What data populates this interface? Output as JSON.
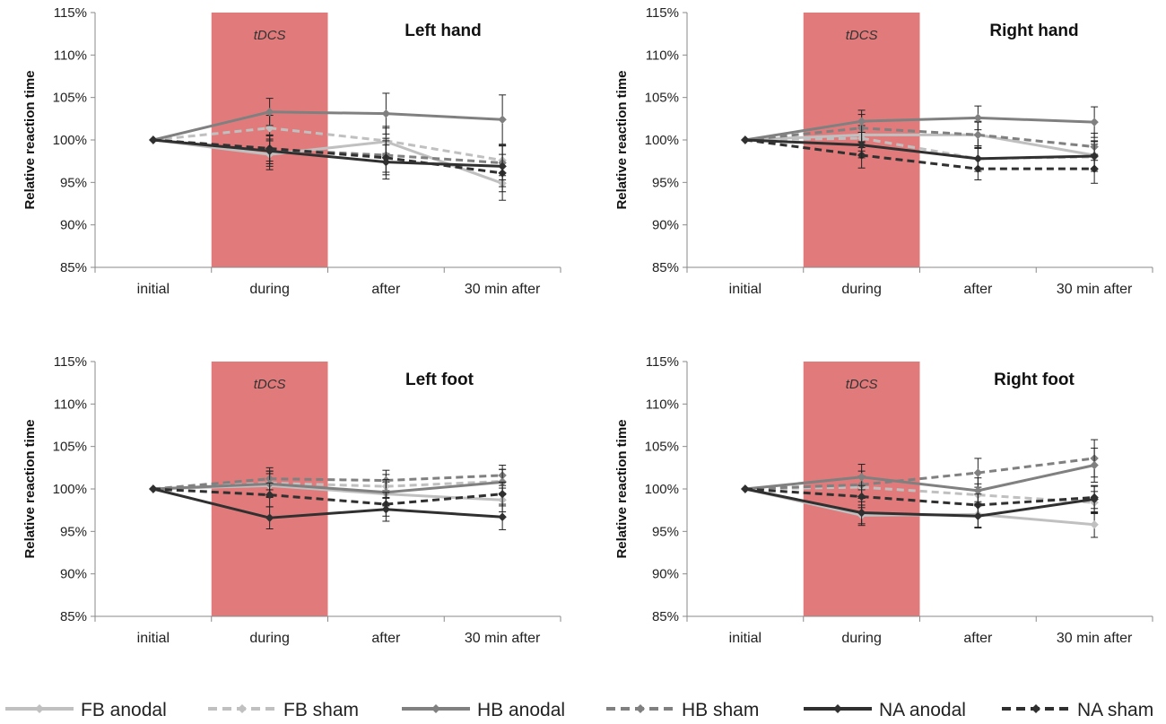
{
  "figure": {
    "legend": [
      {
        "name": "FB anodal",
        "color": "#c0c0c0",
        "dashed": false
      },
      {
        "name": "FB sham",
        "color": "#c0c0c0",
        "dashed": true
      },
      {
        "name": "HB anodal",
        "color": "#808080",
        "dashed": false
      },
      {
        "name": "HB sham",
        "color": "#808080",
        "dashed": true
      },
      {
        "name": "NA anodal",
        "color": "#303030",
        "dashed": false
      },
      {
        "name": "NA sham",
        "color": "#303030",
        "dashed": true
      }
    ],
    "stimulation_color": "#dc6464"
  },
  "chart_data": [
    {
      "type": "line",
      "title": "Left hand",
      "ylabel": "Relative reaction time",
      "xlabel": "",
      "categories": [
        "initial",
        "during",
        "after",
        "30 min after"
      ],
      "ylim": [
        85,
        115
      ],
      "yticks": [
        "85%",
        "90%",
        "95%",
        "100%",
        "105%",
        "110%",
        "115%"
      ],
      "shaded_label": "tDCS",
      "series": [
        {
          "name": "FB anodal",
          "values": [
            100,
            98.3,
            99.8,
            94.9
          ],
          "errors": [
            0,
            1.8,
            1.8,
            2.0
          ]
        },
        {
          "name": "FB sham",
          "values": [
            100,
            101.4,
            99.9,
            97.6
          ],
          "errors": [
            0,
            1.5,
            1.5,
            1.8
          ]
        },
        {
          "name": "HB anodal",
          "values": [
            100,
            103.3,
            103.1,
            102.4
          ],
          "errors": [
            0,
            1.6,
            2.4,
            2.9
          ]
        },
        {
          "name": "HB sham",
          "values": [
            100,
            98.9,
            98.2,
            97.3
          ],
          "errors": [
            0,
            1.7,
            2.0,
            2.0
          ]
        },
        {
          "name": "NA anodal",
          "values": [
            100,
            98.7,
            97.4,
            96.9
          ],
          "errors": [
            0,
            1.8,
            2.0,
            2.4
          ]
        },
        {
          "name": "NA sham",
          "values": [
            100,
            99.0,
            97.9,
            96.1
          ],
          "errors": [
            0,
            1.5,
            2.0,
            2.2
          ]
        }
      ]
    },
    {
      "type": "line",
      "title": "Right hand",
      "ylabel": "Relative reaction time",
      "xlabel": "",
      "categories": [
        "initial",
        "during",
        "after",
        "30 min after"
      ],
      "ylim": [
        85,
        115
      ],
      "yticks": [
        "85%",
        "90%",
        "95%",
        "100%",
        "105%",
        "110%",
        "115%"
      ],
      "shaded_label": "tDCS",
      "series": [
        {
          "name": "FB anodal",
          "values": [
            100,
            100.6,
            100.6,
            98.2
          ],
          "errors": [
            0,
            1.5,
            1.5,
            1.6
          ]
        },
        {
          "name": "FB sham",
          "values": [
            100,
            100.2,
            97.8,
            98.0
          ],
          "errors": [
            0,
            1.5,
            1.5,
            1.5
          ]
        },
        {
          "name": "HB anodal",
          "values": [
            100,
            102.2,
            102.6,
            102.1
          ],
          "errors": [
            0,
            1.3,
            1.4,
            1.8
          ]
        },
        {
          "name": "HB sham",
          "values": [
            100,
            101.4,
            100.6,
            99.2
          ],
          "errors": [
            0,
            1.6,
            1.6,
            1.6
          ]
        },
        {
          "name": "NA anodal",
          "values": [
            100,
            99.4,
            97.8,
            98.1
          ],
          "errors": [
            0,
            1.5,
            1.5,
            1.8
          ]
        },
        {
          "name": "NA sham",
          "values": [
            100,
            98.2,
            96.6,
            96.6
          ],
          "errors": [
            0,
            1.5,
            1.3,
            1.7
          ]
        }
      ]
    },
    {
      "type": "line",
      "title": "Left foot",
      "ylabel": "Relative reaction time",
      "xlabel": "",
      "categories": [
        "initial",
        "during",
        "after",
        "30 min after"
      ],
      "ylim": [
        85,
        115
      ],
      "yticks": [
        "85%",
        "90%",
        "95%",
        "100%",
        "105%",
        "110%",
        "115%"
      ],
      "shaded_label": "tDCS",
      "series": [
        {
          "name": "FB anodal",
          "values": [
            100,
            100.4,
            99.4,
            98.7
          ],
          "errors": [
            0,
            1.4,
            1.4,
            1.4
          ]
        },
        {
          "name": "FB sham",
          "values": [
            100,
            100.7,
            100.3,
            100.9
          ],
          "errors": [
            0,
            1.4,
            1.4,
            1.4
          ]
        },
        {
          "name": "HB anodal",
          "values": [
            100,
            100.6,
            99.6,
            100.8
          ],
          "errors": [
            0,
            1.5,
            1.5,
            1.5
          ]
        },
        {
          "name": "HB sham",
          "values": [
            100,
            101.2,
            101.0,
            101.6
          ],
          "errors": [
            0,
            1.3,
            1.2,
            1.2
          ]
        },
        {
          "name": "NA anodal",
          "values": [
            100,
            96.6,
            97.6,
            96.7
          ],
          "errors": [
            0,
            1.3,
            1.4,
            1.5
          ]
        },
        {
          "name": "NA sham",
          "values": [
            100,
            99.3,
            98.2,
            99.4
          ],
          "errors": [
            0,
            1.4,
            1.4,
            1.4
          ]
        }
      ]
    },
    {
      "type": "line",
      "title": "Right foot",
      "ylabel": "Relative reaction time",
      "xlabel": "",
      "categories": [
        "initial",
        "during",
        "after",
        "30 min after"
      ],
      "ylim": [
        85,
        115
      ],
      "yticks": [
        "85%",
        "90%",
        "95%",
        "100%",
        "105%",
        "110%",
        "115%"
      ],
      "shaded_label": "tDCS",
      "series": [
        {
          "name": "FB anodal",
          "values": [
            100,
            96.9,
            97.0,
            95.8
          ],
          "errors": [
            0,
            1.2,
            1.5,
            1.5
          ]
        },
        {
          "name": "FB sham",
          "values": [
            100,
            100.2,
            99.3,
            98.4
          ],
          "errors": [
            0,
            1.3,
            1.3,
            1.3
          ]
        },
        {
          "name": "HB anodal",
          "values": [
            100,
            101.4,
            99.8,
            102.8
          ],
          "errors": [
            0,
            1.5,
            1.5,
            2.0
          ]
        },
        {
          "name": "HB sham",
          "values": [
            100,
            100.5,
            101.9,
            103.6
          ],
          "errors": [
            0,
            1.6,
            1.7,
            2.2
          ]
        },
        {
          "name": "NA anodal",
          "values": [
            100,
            97.2,
            96.8,
            98.8
          ],
          "errors": [
            0,
            1.3,
            1.4,
            1.6
          ]
        },
        {
          "name": "NA sham",
          "values": [
            100,
            99.1,
            98.1,
            99.0
          ],
          "errors": [
            0,
            1.3,
            1.3,
            1.3
          ]
        }
      ]
    }
  ]
}
